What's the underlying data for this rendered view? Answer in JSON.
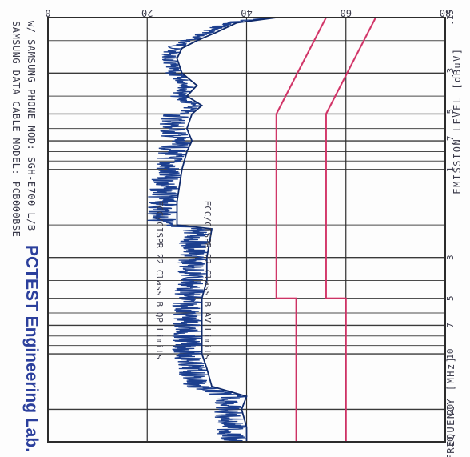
{
  "header": {
    "lab_name": "PCTEST Engineering Lab.",
    "line1": "SAMSUNG DATA CABLE   MODEL: PCB000BSE",
    "line2": "w/ SAMSUNG PHONE MOD: SGH-E700       L/B"
  },
  "chart_data": {
    "type": "line",
    "xlabel": "FREQUENCY [MHz]",
    "ylabel": "EMISSION LEVEL [dBuV]",
    "xscale": "log",
    "xlim": [
      0.15,
      30
    ],
    "ylim": [
      0,
      80
    ],
    "x_tick_labels": [
      ".15",
      ".3",
      ".5",
      ".7",
      "1",
      "3",
      "5",
      "7",
      "10",
      "20",
      "30"
    ],
    "x_ticks": [
      0.15,
      0.3,
      0.5,
      0.7,
      1,
      3,
      5,
      7,
      10,
      20,
      30
    ],
    "y_tick_labels": [
      "0",
      "20",
      "40",
      "60",
      "80"
    ],
    "y_ticks": [
      0,
      20,
      40,
      60,
      80
    ],
    "grid": true,
    "limits": [
      {
        "label": "FCC/CISPR 22 Class B QP Limits",
        "color": "#e0306a",
        "points": [
          [
            0.15,
            66
          ],
          [
            0.5,
            56
          ],
          [
            5,
            56
          ],
          [
            5,
            60
          ],
          [
            30,
            60
          ]
        ]
      },
      {
        "label": "FCC/CISPR 22 Class B AV Limits",
        "color": "#e0306a",
        "points": [
          [
            0.15,
            56
          ],
          [
            0.5,
            46
          ],
          [
            5,
            46
          ],
          [
            5,
            50
          ],
          [
            30,
            50
          ]
        ]
      }
    ],
    "emission_envelope": {
      "color": "#1c3f8f",
      "points": [
        [
          0.15,
          46
        ],
        [
          0.16,
          38
        ],
        [
          0.18,
          34
        ],
        [
          0.2,
          30
        ],
        [
          0.22,
          27
        ],
        [
          0.25,
          26
        ],
        [
          0.3,
          27
        ],
        [
          0.35,
          30
        ],
        [
          0.4,
          28
        ],
        [
          0.45,
          31
        ],
        [
          0.5,
          29
        ],
        [
          0.6,
          28
        ],
        [
          0.7,
          29
        ],
        [
          0.8,
          28
        ],
        [
          1,
          27
        ],
        [
          1.5,
          26
        ],
        [
          2,
          26
        ],
        [
          2.1,
          33
        ],
        [
          3,
          32
        ],
        [
          4,
          32
        ],
        [
          5,
          31
        ],
        [
          7,
          31
        ],
        [
          10,
          31
        ],
        [
          12,
          32
        ],
        [
          15,
          33
        ],
        [
          17,
          40
        ],
        [
          20,
          39
        ],
        [
          25,
          40
        ],
        [
          30,
          40
        ]
      ]
    }
  }
}
